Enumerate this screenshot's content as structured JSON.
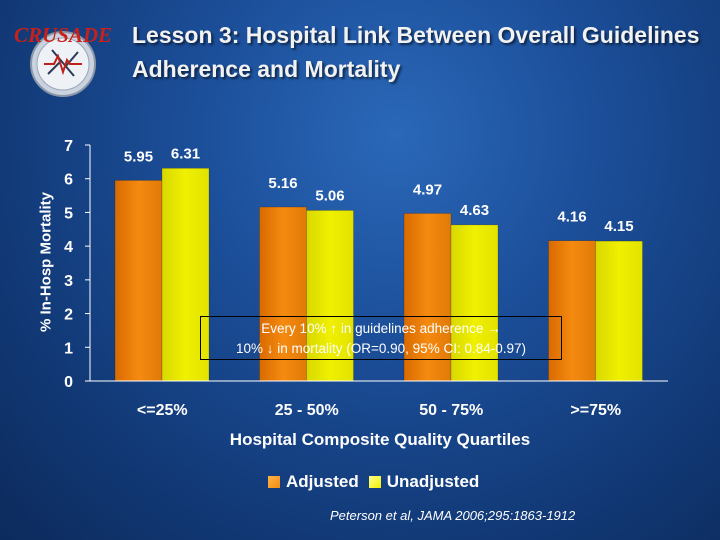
{
  "title": "Lesson 3: Hospital Link Between Overall Guidelines Adherence and Mortality",
  "logo_text": "CRUSADE",
  "annotation": {
    "line1": "Every 10% ↑ in guidelines adherence →",
    "line2": "10% ↓ in mortality (OR=0.90, 95% CI: 0.84-0.97)"
  },
  "citation": "Peterson et al, JAMA 2006;295:1863-1912",
  "colors": {
    "adjusted": "#f58a10",
    "unadjusted": "#f0f000"
  },
  "chart_data": {
    "type": "bar",
    "categories": [
      "<=25%",
      "25 - 50%",
      "50 - 75%",
      ">=75%"
    ],
    "series": [
      {
        "name": "Adjusted",
        "values": [
          5.95,
          5.16,
          4.97,
          4.16
        ]
      },
      {
        "name": "Unadjusted",
        "values": [
          6.31,
          5.06,
          4.63,
          4.15
        ]
      }
    ],
    "value_labels": [
      [
        "5.95",
        "5.16",
        "4.97",
        "4.16"
      ],
      [
        "6.31",
        "5.06",
        "4.63",
        "4.15"
      ]
    ],
    "title": "",
    "xlabel": "Hospital Composite Quality Quartiles",
    "ylabel": "% In-Hosp Mortality",
    "ylim": [
      0,
      7
    ],
    "yticks": [
      "0",
      "1",
      "2",
      "3",
      "4",
      "5",
      "6",
      "7"
    ],
    "legend_position": "bottom",
    "grid": false
  }
}
